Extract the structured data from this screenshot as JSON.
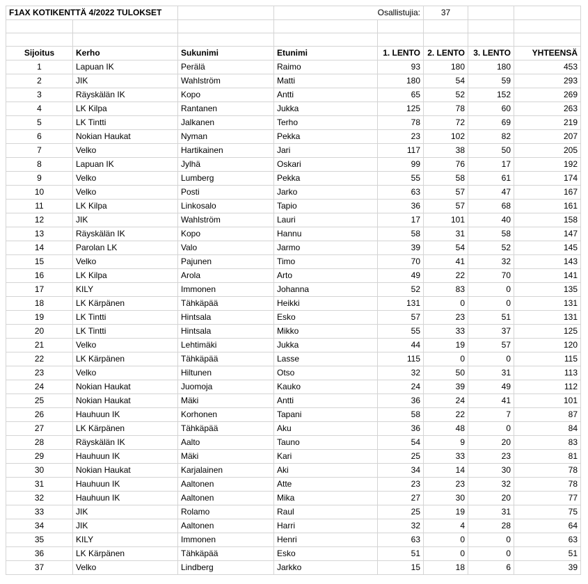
{
  "title": "F1AX KOTIKENTTÄ 4/2022 TULOKSET",
  "participants_label": "Osallistujia:",
  "participants_count": "37",
  "headers": [
    "Sijoitus",
    "Kerho",
    "Sukunimi",
    "Etunimi",
    "1. LENTO",
    "2. LENTO",
    "3. LENTO",
    "YHTEENSÄ"
  ],
  "rows": [
    [
      "1",
      "Lapuan IK",
      "Perälä",
      "Raimo",
      "93",
      "180",
      "180",
      "453"
    ],
    [
      "2",
      "JIK",
      "Wahlström",
      "Matti",
      "180",
      "54",
      "59",
      "293"
    ],
    [
      "3",
      "Räyskälän IK",
      "Kopo",
      "Antti",
      "65",
      "52",
      "152",
      "269"
    ],
    [
      "4",
      "LK Kilpa",
      "Rantanen",
      "Jukka",
      "125",
      "78",
      "60",
      "263"
    ],
    [
      "5",
      "LK Tintti",
      "Jalkanen",
      "Terho",
      "78",
      "72",
      "69",
      "219"
    ],
    [
      "6",
      "Nokian Haukat",
      "Nyman",
      "Pekka",
      "23",
      "102",
      "82",
      "207"
    ],
    [
      "7",
      "Velko",
      "Hartikainen",
      "Jari",
      "117",
      "38",
      "50",
      "205"
    ],
    [
      "8",
      "Lapuan IK",
      "Jylhä",
      "Oskari",
      "99",
      "76",
      "17",
      "192"
    ],
    [
      "9",
      "Velko",
      "Lumberg",
      "Pekka",
      "55",
      "58",
      "61",
      "174"
    ],
    [
      "10",
      "Velko",
      "Posti",
      "Jarko",
      "63",
      "57",
      "47",
      "167"
    ],
    [
      "11",
      "LK Kilpa",
      "Linkosalo",
      "Tapio",
      "36",
      "57",
      "68",
      "161"
    ],
    [
      "12",
      "JIK",
      "Wahlström",
      "Lauri",
      "17",
      "101",
      "40",
      "158"
    ],
    [
      "13",
      "Räyskälän IK",
      "Kopo",
      "Hannu",
      "58",
      "31",
      "58",
      "147"
    ],
    [
      "14",
      "Parolan LK",
      "Valo",
      "Jarmo",
      "39",
      "54",
      "52",
      "145"
    ],
    [
      "15",
      "Velko",
      "Pajunen",
      "Timo",
      "70",
      "41",
      "32",
      "143"
    ],
    [
      "16",
      "LK Kilpa",
      "Arola",
      "Arto",
      "49",
      "22",
      "70",
      "141"
    ],
    [
      "17",
      "KILY",
      "Immonen",
      "Johanna",
      "52",
      "83",
      "0",
      "135"
    ],
    [
      "18",
      "LK Kärpänen",
      "Tähkäpää",
      "Heikki",
      "131",
      "0",
      "0",
      "131"
    ],
    [
      "19",
      "LK Tintti",
      "Hintsala",
      "Esko",
      "57",
      "23",
      "51",
      "131"
    ],
    [
      "20",
      "LK Tintti",
      "Hintsala",
      "Mikko",
      "55",
      "33",
      "37",
      "125"
    ],
    [
      "21",
      "Velko",
      "Lehtimäki",
      "Jukka",
      "44",
      "19",
      "57",
      "120"
    ],
    [
      "22",
      "LK Kärpänen",
      "Tähkäpää",
      "Lasse",
      "115",
      "0",
      "0",
      "115"
    ],
    [
      "23",
      "Velko",
      "Hiltunen",
      "Otso",
      "32",
      "50",
      "31",
      "113"
    ],
    [
      "24",
      "Nokian Haukat",
      "Juomoja",
      "Kauko",
      "24",
      "39",
      "49",
      "112"
    ],
    [
      "25",
      "Nokian Haukat",
      "Mäki",
      "Antti",
      "36",
      "24",
      "41",
      "101"
    ],
    [
      "26",
      "Hauhuun IK",
      "Korhonen",
      "Tapani",
      "58",
      "22",
      "7",
      "87"
    ],
    [
      "27",
      "LK Kärpänen",
      "Tähkäpää",
      "Aku",
      "36",
      "48",
      "0",
      "84"
    ],
    [
      "28",
      "Räyskälän IK",
      "Aalto",
      "Tauno",
      "54",
      "9",
      "20",
      "83"
    ],
    [
      "29",
      "Hauhuun IK",
      "Mäki",
      "Kari",
      "25",
      "33",
      "23",
      "81"
    ],
    [
      "30",
      "Nokian Haukat",
      "Karjalainen",
      "Aki",
      "34",
      "14",
      "30",
      "78"
    ],
    [
      "31",
      "Hauhuun IK",
      "Aaltonen",
      "Atte",
      "23",
      "23",
      "32",
      "78"
    ],
    [
      "32",
      "Hauhuun IK",
      "Aaltonen",
      "Mika",
      "27",
      "30",
      "20",
      "77"
    ],
    [
      "33",
      "JIK",
      "Rolamo",
      "Raul",
      "25",
      "19",
      "31",
      "75"
    ],
    [
      "34",
      "JIK",
      "Aaltonen",
      "Harri",
      "32",
      "4",
      "28",
      "64"
    ],
    [
      "35",
      "KILY",
      "Immonen",
      "Henri",
      "63",
      "0",
      "0",
      "63"
    ],
    [
      "36",
      "LK Kärpänen",
      "Tähkäpää",
      "Esko",
      "51",
      "0",
      "0",
      "51"
    ],
    [
      "37",
      "Velko",
      "Lindberg",
      "Jarkko",
      "15",
      "18",
      "6",
      "39"
    ]
  ]
}
